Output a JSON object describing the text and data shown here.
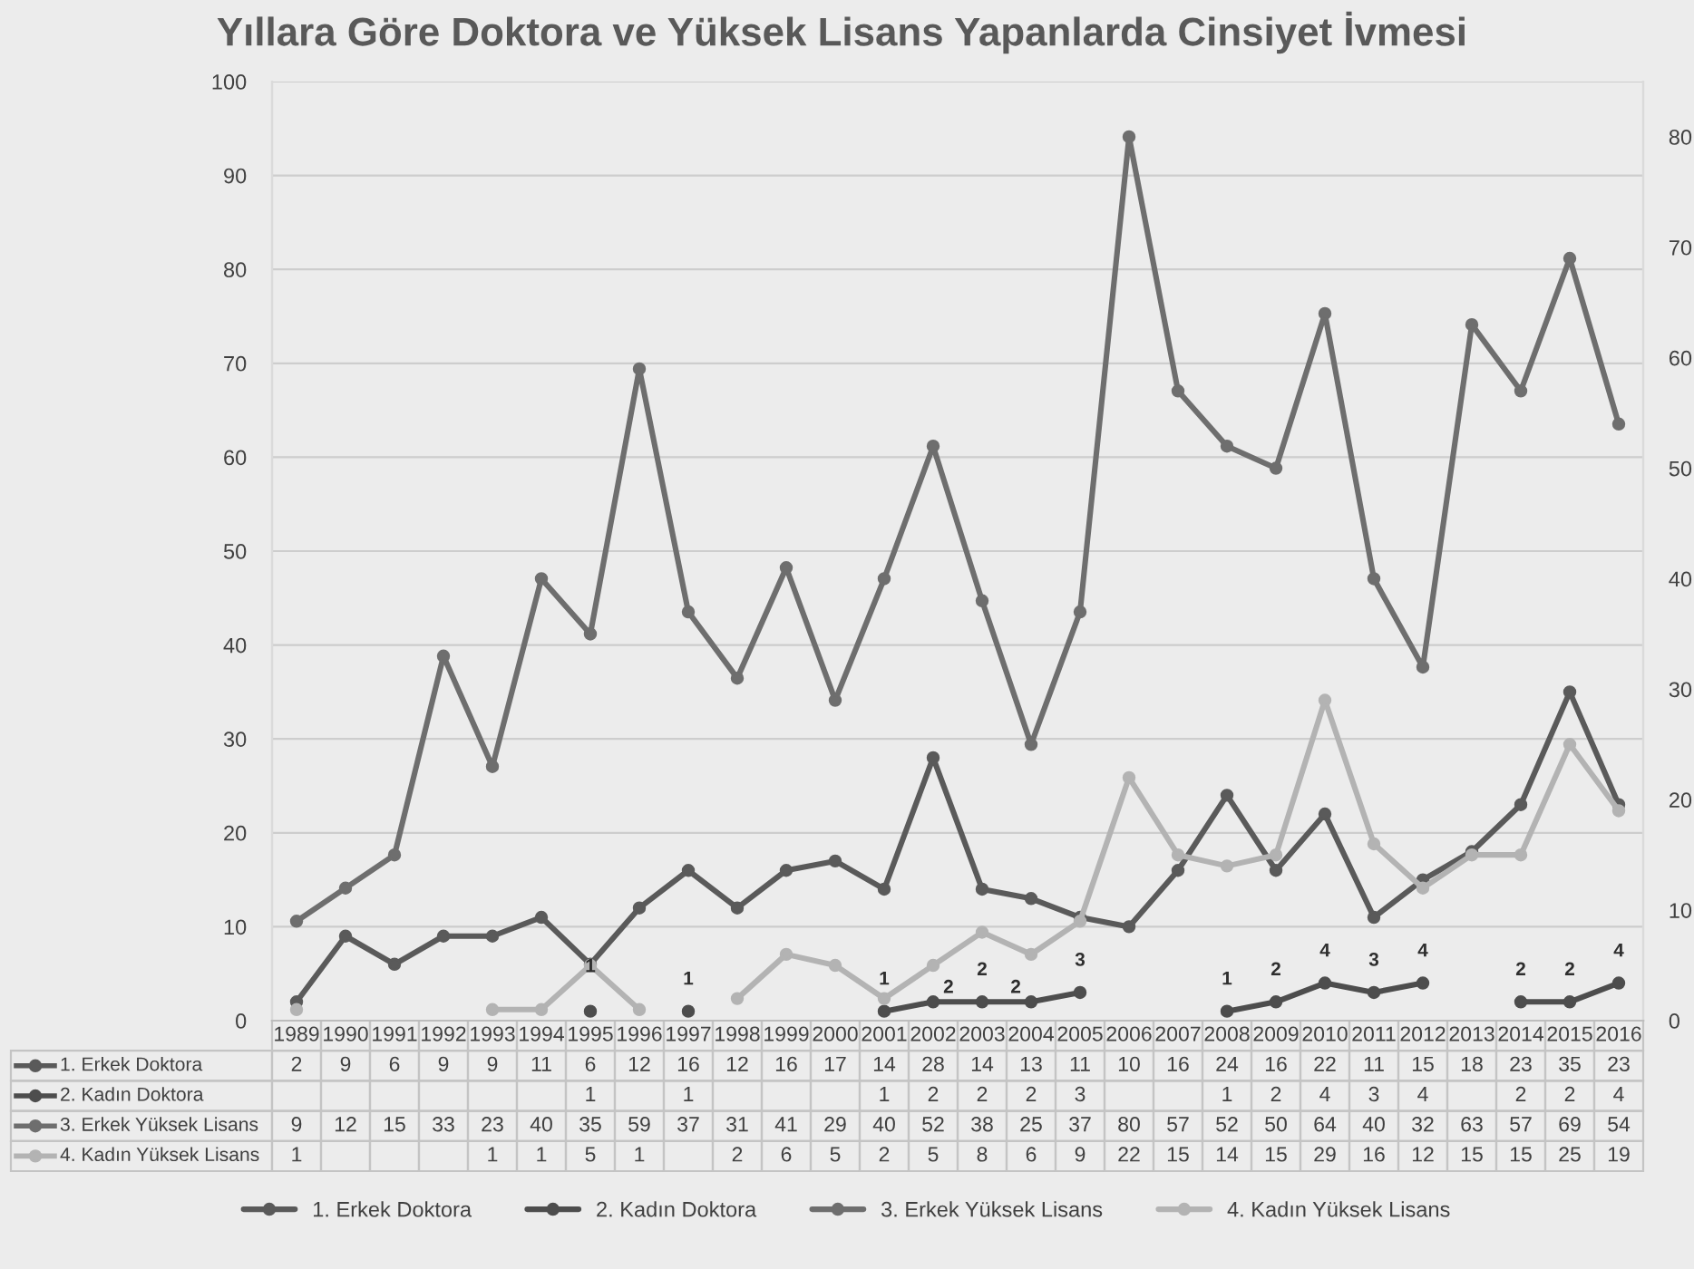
{
  "chart_data": {
    "type": "line",
    "title": "Yıllara Göre Doktora ve Yüksek Lisans Yapanlarda Cinsiyet İvmesi",
    "categories": [
      "1989",
      "1990",
      "1991",
      "1992",
      "1993",
      "1994",
      "1995",
      "1996",
      "1997",
      "1998",
      "1999",
      "2000",
      "2001",
      "2002",
      "2003",
      "2004",
      "2005",
      "2006",
      "2007",
      "2008",
      "2009",
      "2010",
      "2011",
      "2012",
      "2013",
      "2014",
      "2015",
      "2016"
    ],
    "ylim": [
      0,
      100
    ],
    "yticks": [
      0,
      10,
      20,
      30,
      40,
      50,
      60,
      70,
      80,
      90,
      100
    ],
    "y2lim": [
      0,
      85
    ],
    "y2ticks": [
      0,
      10,
      20,
      30,
      40,
      50,
      60,
      70,
      80
    ],
    "grid": "y",
    "legend": "bottom",
    "marker": "circle",
    "line_style": "solid",
    "data_labels": true,
    "series": [
      {
        "name": "1. Erkek Doktora",
        "color": "#5a5a5a",
        "values": [
          2,
          9,
          6,
          9,
          9,
          11,
          6,
          12,
          16,
          12,
          16,
          17,
          14,
          28,
          14,
          13,
          11,
          10,
          16,
          24,
          16,
          22,
          11,
          15,
          18,
          23,
          35,
          23
        ]
      },
      {
        "name": "2. Kadın Doktora",
        "color": "#4d4d4d",
        "values": [
          null,
          null,
          null,
          null,
          null,
          null,
          1,
          null,
          1,
          null,
          null,
          null,
          1,
          2,
          2,
          2,
          3,
          null,
          null,
          1,
          2,
          4,
          3,
          4,
          null,
          2,
          2,
          4
        ]
      },
      {
        "name": "3. Erkek Yüksek Lisans",
        "color": "#6e6e6e",
        "axis": "y2",
        "values": [
          9,
          12,
          15,
          33,
          23,
          40,
          35,
          59,
          37,
          31,
          41,
          29,
          40,
          52,
          38,
          25,
          37,
          80,
          57,
          52,
          50,
          64,
          40,
          32,
          63,
          57,
          69,
          54
        ]
      },
      {
        "name": "4. Kadın Yüksek Lisans",
        "color": "#b3b3b3",
        "axis": "y2",
        "values": [
          1,
          null,
          null,
          null,
          1,
          1,
          5,
          1,
          null,
          2,
          6,
          5,
          2,
          5,
          8,
          6,
          9,
          22,
          15,
          14,
          15,
          29,
          16,
          12,
          15,
          15,
          25,
          19
        ]
      }
    ],
    "annotations": [
      {
        "text": "1",
        "x": "1995",
        "y": 1
      },
      {
        "text": "1",
        "x": "1997",
        "y": 1
      },
      {
        "text": "1",
        "x": "2001",
        "y": 1
      },
      {
        "text": "2",
        "x": "2002",
        "y": 2
      },
      {
        "text": "2",
        "x": "2003",
        "y": 2
      },
      {
        "text": "2",
        "x": "2004",
        "y": 2
      },
      {
        "text": "3",
        "x": "2005",
        "y": 3
      },
      {
        "text": "1",
        "x": "2008",
        "y": 1
      },
      {
        "text": "2",
        "x": "2009",
        "y": 2
      },
      {
        "text": "4",
        "x": "2010",
        "y": 4
      },
      {
        "text": "3",
        "x": "2011",
        "y": 3
      },
      {
        "text": "4",
        "x": "2012",
        "y": 4
      },
      {
        "text": "2",
        "x": "2014",
        "y": 2
      },
      {
        "text": "2",
        "x": "2015",
        "y": 2
      },
      {
        "text": "4",
        "x": "2016",
        "y": 4
      }
    ]
  }
}
